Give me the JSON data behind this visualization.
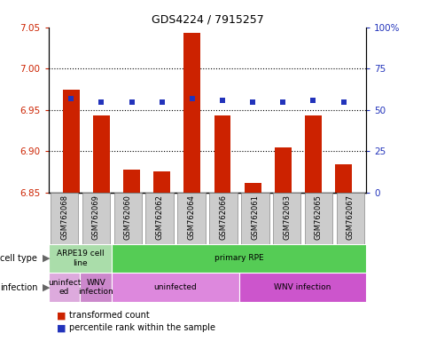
{
  "title": "GDS4224 / 7915257",
  "samples": [
    "GSM762068",
    "GSM762069",
    "GSM762060",
    "GSM762062",
    "GSM762064",
    "GSM762066",
    "GSM762061",
    "GSM762063",
    "GSM762065",
    "GSM762067"
  ],
  "transformed_counts": [
    6.975,
    6.943,
    6.878,
    6.876,
    7.043,
    6.943,
    6.862,
    6.905,
    6.943,
    6.884
  ],
  "percentile_ranks": [
    57,
    55,
    55,
    55,
    57,
    56,
    55,
    55,
    56,
    55
  ],
  "ylim_left": [
    6.85,
    7.05
  ],
  "ylim_right": [
    0,
    100
  ],
  "yticks_left": [
    6.85,
    6.9,
    6.95,
    7.0,
    7.05
  ],
  "yticks_right": [
    0,
    25,
    50,
    75,
    100
  ],
  "ytick_labels_right": [
    "0",
    "25",
    "50",
    "75",
    "100%"
  ],
  "grid_lines": [
    6.9,
    6.95,
    7.0
  ],
  "bar_color": "#cc2200",
  "dot_color": "#2233bb",
  "cell_types": [
    {
      "label": "ARPE19 cell\nline",
      "start": 0,
      "end": 2,
      "color": "#aaddaa"
    },
    {
      "label": "primary RPE",
      "start": 2,
      "end": 10,
      "color": "#55cc55"
    }
  ],
  "infections": [
    {
      "label": "uninfect\ned",
      "start": 0,
      "end": 1,
      "color": "#ddaadd"
    },
    {
      "label": "WNV\ninfection",
      "start": 1,
      "end": 2,
      "color": "#cc88cc"
    },
    {
      "label": "uninfected",
      "start": 2,
      "end": 6,
      "color": "#dd88dd"
    },
    {
      "label": "WNV infection",
      "start": 6,
      "end": 10,
      "color": "#cc55cc"
    }
  ],
  "bar_bottom": 6.85,
  "sample_box_color": "#cccccc",
  "sample_box_edge": "#888888",
  "left_label_color": "#666666"
}
